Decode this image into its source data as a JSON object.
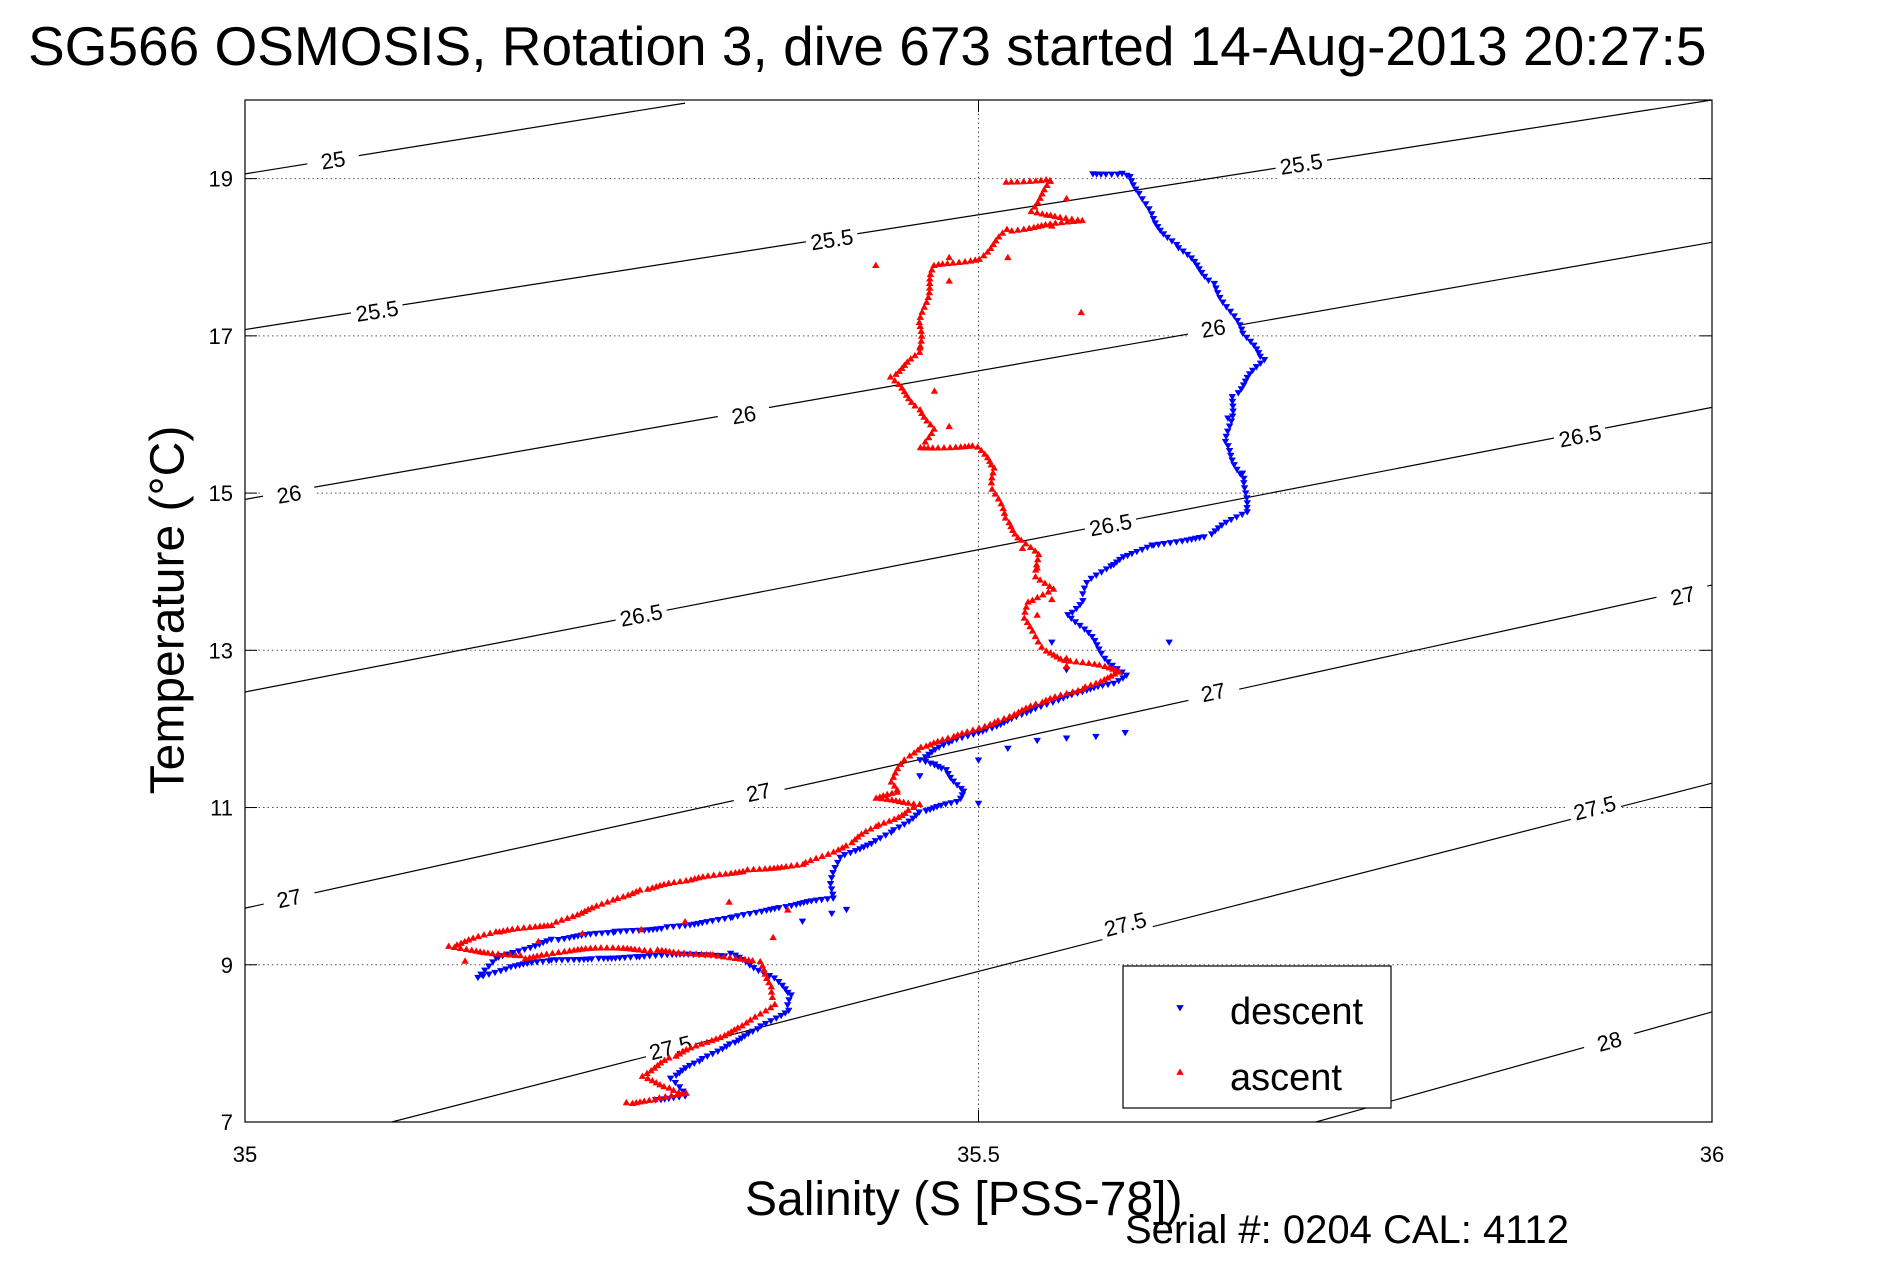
{
  "chart_data": {
    "type": "scatter",
    "title": "SG566 OSMOSIS, Rotation 3, dive 673 started 14-Aug-2013 20:27:5",
    "xlabel": "Salinity (S [PSS-78])",
    "ylabel": "Temperature (°C)",
    "xlim": [
      35,
      36
    ],
    "ylim": [
      7,
      20
    ],
    "xticks": [
      "35",
      "35.5",
      "36"
    ],
    "yticks": [
      "7",
      "9",
      "11",
      "13",
      "15",
      "17",
      "19"
    ],
    "grid": "dotted",
    "legend_position": "bottom-right",
    "footer": "Serial #: 0204  CAL: 4112",
    "density_contours": [
      {
        "label": "25",
        "points": [
          [
            35.0,
            19.06
          ],
          [
            35.3,
            19.96
          ]
        ],
        "labels_at": [
          [
            35.06,
            19.24
          ]
        ]
      },
      {
        "label": "25.5",
        "points": [
          [
            35.0,
            17.08
          ],
          [
            36.0,
            20.0
          ]
        ],
        "labels_at": [
          [
            35.09,
            17.32
          ],
          [
            35.4,
            18.23
          ],
          [
            35.72,
            19.19
          ]
        ]
      },
      {
        "label": "26",
        "points": [
          [
            35.0,
            14.92
          ],
          [
            36.0,
            18.19
          ]
        ],
        "labels_at": [
          [
            35.03,
            14.99
          ],
          [
            35.34,
            16.0
          ],
          [
            35.66,
            17.1
          ]
        ]
      },
      {
        "label": "26.5",
        "points": [
          [
            35.0,
            12.47
          ],
          [
            36.0,
            16.09
          ]
        ],
        "labels_at": [
          [
            35.27,
            13.45
          ],
          [
            35.59,
            14.6
          ],
          [
            35.91,
            15.73
          ]
        ]
      },
      {
        "label": "27",
        "points": [
          [
            35.0,
            9.72
          ],
          [
            36.0,
            13.83
          ]
        ],
        "labels_at": [
          [
            35.03,
            9.85
          ],
          [
            35.35,
            11.2
          ],
          [
            35.66,
            12.47
          ],
          [
            35.98,
            13.7
          ]
        ]
      },
      {
        "label": "27.5",
        "points": [
          [
            35.1,
            7.0
          ],
          [
            36.0,
            11.31
          ]
        ],
        "labels_at": [
          [
            35.29,
            7.95
          ],
          [
            35.6,
            9.52
          ],
          [
            35.92,
            11.0
          ]
        ]
      },
      {
        "label": "28",
        "points": [
          [
            35.73,
            7.0
          ],
          [
            36.0,
            8.4
          ]
        ],
        "labels_at": [
          [
            35.93,
            8.03
          ]
        ]
      }
    ],
    "series": [
      {
        "name": "descent",
        "color": "#0000ff",
        "marker": "triangle-down",
        "path_points": [
          [
            35.578,
            19.08
          ],
          [
            35.598,
            19.06
          ],
          [
            35.603,
            19.0
          ],
          [
            35.612,
            18.75
          ],
          [
            35.62,
            18.45
          ],
          [
            35.637,
            18.1
          ],
          [
            35.66,
            17.65
          ],
          [
            35.681,
            17.05
          ],
          [
            35.694,
            16.7
          ],
          [
            35.674,
            16.2
          ],
          [
            35.669,
            15.6
          ],
          [
            35.682,
            15.15
          ],
          [
            35.682,
            14.75
          ],
          [
            35.655,
            14.42
          ],
          [
            35.617,
            14.35
          ],
          [
            35.6,
            14.2
          ],
          [
            35.589,
            14.05
          ],
          [
            35.575,
            13.85
          ],
          [
            35.57,
            13.65
          ],
          [
            35.562,
            13.45
          ],
          [
            35.574,
            13.2
          ],
          [
            35.587,
            12.9
          ],
          [
            35.6,
            12.7
          ],
          [
            35.589,
            12.55
          ],
          [
            35.56,
            12.4
          ],
          [
            35.53,
            12.2
          ],
          [
            35.505,
            12.0
          ],
          [
            35.48,
            11.8
          ],
          [
            35.46,
            11.6
          ],
          [
            35.478,
            11.5
          ],
          [
            35.49,
            11.2
          ],
          [
            35.485,
            11.05
          ],
          [
            35.46,
            10.95
          ],
          [
            35.44,
            10.7
          ],
          [
            35.425,
            10.5
          ],
          [
            35.405,
            10.35
          ],
          [
            35.4,
            10.05
          ],
          [
            35.4,
            9.85
          ],
          [
            35.365,
            9.7
          ],
          [
            35.33,
            9.6
          ],
          [
            35.285,
            9.48
          ],
          [
            35.25,
            9.4
          ],
          [
            35.21,
            9.3
          ],
          [
            35.17,
            9.1
          ],
          [
            35.16,
            8.85
          ],
          [
            35.18,
            8.95
          ],
          [
            35.21,
            9.05
          ],
          [
            35.24,
            9.1
          ],
          [
            35.27,
            9.1
          ],
          [
            35.33,
            9.12
          ],
          [
            35.345,
            9.0
          ],
          [
            35.36,
            8.85
          ],
          [
            35.373,
            8.6
          ],
          [
            35.37,
            8.4
          ],
          [
            35.35,
            8.2
          ],
          [
            35.33,
            8.0
          ],
          [
            35.31,
            7.75
          ],
          [
            35.29,
            7.55
          ],
          [
            35.3,
            7.35
          ],
          [
            35.28,
            7.28
          ]
        ],
        "extra_points": [
          [
            35.6,
            11.95
          ],
          [
            35.58,
            11.9
          ],
          [
            35.56,
            11.88
          ],
          [
            35.54,
            11.85
          ],
          [
            35.52,
            11.75
          ],
          [
            35.5,
            11.6
          ],
          [
            35.41,
            9.7
          ],
          [
            35.4,
            9.65
          ],
          [
            35.38,
            9.55
          ],
          [
            35.55,
            13.1
          ],
          [
            35.56,
            12.75
          ],
          [
            35.5,
            11.05
          ],
          [
            35.46,
            11.4
          ],
          [
            35.47,
            11.55
          ],
          [
            35.68,
            15.25
          ],
          [
            35.67,
            15.95
          ],
          [
            35.63,
            13.1
          ]
        ]
      },
      {
        "name": "ascent",
        "color": "#ff0000",
        "marker": "triangle-up",
        "path_points": [
          [
            35.52,
            18.98
          ],
          [
            35.545,
            18.98
          ],
          [
            35.55,
            18.95
          ],
          [
            35.535,
            18.6
          ],
          [
            35.55,
            18.55
          ],
          [
            35.57,
            18.45
          ],
          [
            35.52,
            18.35
          ],
          [
            35.5,
            18.0
          ],
          [
            35.47,
            17.9
          ],
          [
            35.46,
            17.1
          ],
          [
            35.46,
            16.8
          ],
          [
            35.44,
            16.5
          ],
          [
            35.46,
            16.05
          ],
          [
            35.47,
            15.8
          ],
          [
            35.46,
            15.6
          ],
          [
            35.5,
            15.6
          ],
          [
            35.51,
            15.3
          ],
          [
            35.51,
            15.05
          ],
          [
            35.52,
            14.65
          ],
          [
            35.53,
            14.4
          ],
          [
            35.54,
            14.2
          ],
          [
            35.54,
            13.95
          ],
          [
            35.55,
            13.8
          ],
          [
            35.535,
            13.6
          ],
          [
            35.53,
            13.4
          ],
          [
            35.54,
            13.2
          ],
          [
            35.545,
            13.0
          ],
          [
            35.56,
            12.85
          ],
          [
            35.585,
            12.8
          ],
          [
            35.597,
            12.75
          ],
          [
            35.57,
            12.5
          ],
          [
            35.54,
            12.3
          ],
          [
            35.51,
            12.1
          ],
          [
            35.48,
            11.9
          ],
          [
            35.46,
            11.75
          ],
          [
            35.45,
            11.6
          ],
          [
            35.44,
            11.35
          ],
          [
            35.445,
            11.2
          ],
          [
            35.43,
            11.1
          ],
          [
            35.46,
            11.05
          ],
          [
            35.45,
            10.95
          ],
          [
            35.43,
            10.75
          ],
          [
            35.41,
            10.5
          ],
          [
            35.38,
            10.3
          ],
          [
            35.34,
            10.2
          ],
          [
            35.3,
            10.05
          ],
          [
            35.27,
            9.95
          ],
          [
            35.25,
            9.85
          ],
          [
            35.21,
            9.5
          ],
          [
            35.17,
            9.4
          ],
          [
            35.14,
            9.25
          ],
          [
            35.19,
            9.1
          ],
          [
            35.24,
            9.2
          ],
          [
            35.28,
            9.18
          ],
          [
            35.32,
            9.15
          ],
          [
            35.35,
            9.05
          ],
          [
            35.36,
            8.7
          ],
          [
            35.36,
            8.5
          ],
          [
            35.34,
            8.25
          ],
          [
            35.32,
            8.05
          ],
          [
            35.29,
            7.8
          ],
          [
            35.27,
            7.6
          ],
          [
            35.29,
            7.45
          ],
          [
            35.3,
            7.35
          ],
          [
            35.28,
            7.28
          ],
          [
            35.26,
            7.25
          ]
        ],
        "extra_points": [
          [
            35.43,
            17.9
          ],
          [
            35.48,
            18.0
          ],
          [
            35.48,
            17.7
          ],
          [
            35.46,
            16.85
          ],
          [
            35.47,
            16.3
          ],
          [
            35.48,
            15.85
          ],
          [
            35.53,
            14.3
          ],
          [
            35.54,
            14.05
          ],
          [
            35.54,
            13.45
          ],
          [
            35.56,
            12.9
          ],
          [
            35.37,
            9.7
          ],
          [
            35.33,
            9.8
          ],
          [
            35.3,
            9.55
          ],
          [
            35.27,
            9.45
          ],
          [
            35.23,
            9.4
          ],
          [
            35.2,
            9.3
          ],
          [
            35.15,
            9.05
          ],
          [
            35.56,
            18.75
          ],
          [
            35.55,
            18.4
          ],
          [
            35.57,
            17.3
          ],
          [
            35.52,
            18.0
          ],
          [
            35.56,
            12.8
          ],
          [
            35.55,
            13.65
          ],
          [
            35.36,
            9.35
          ]
        ]
      }
    ]
  }
}
